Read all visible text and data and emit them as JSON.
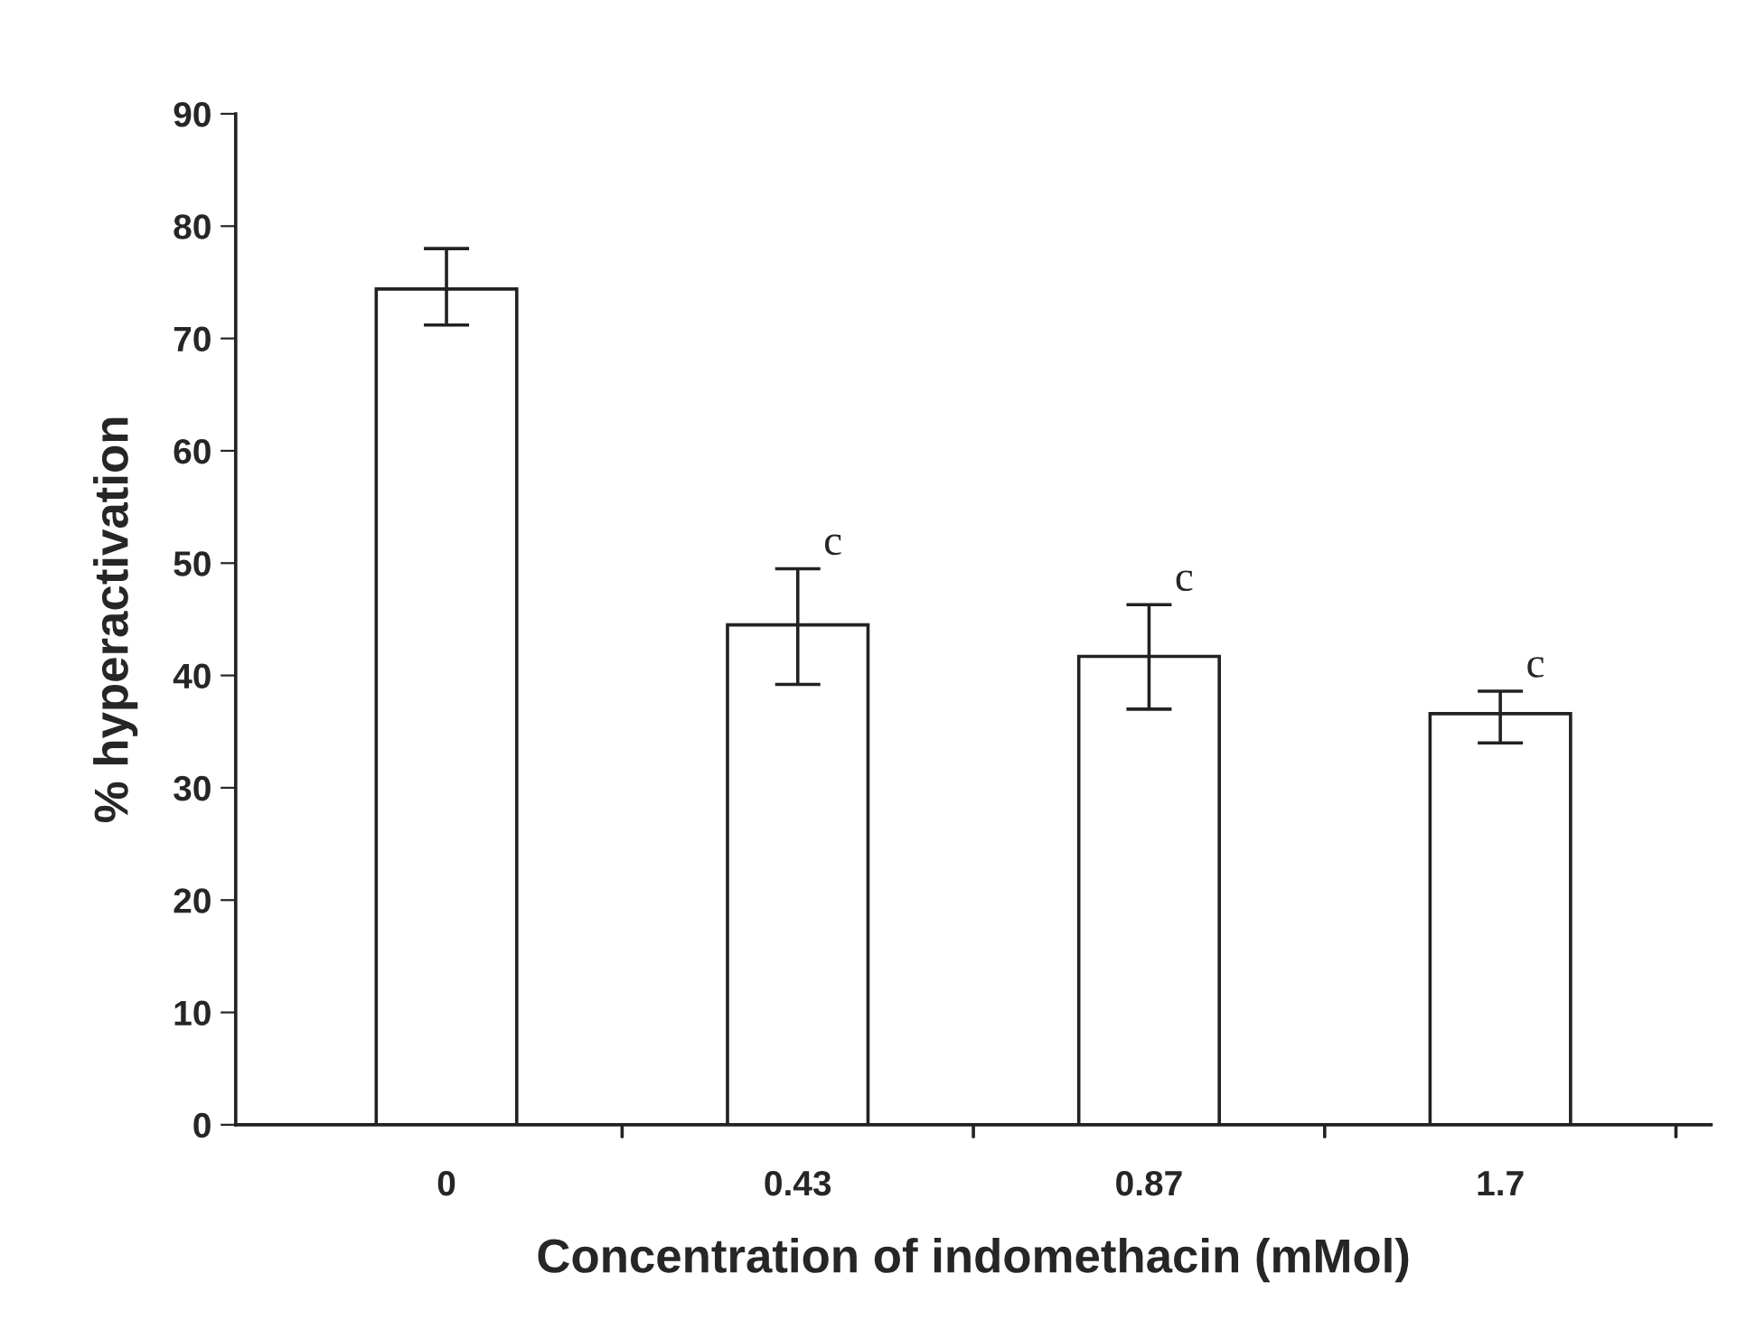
{
  "chart_data": {
    "type": "bar",
    "xlabel": "Concentration of indomethacin (mMol)",
    "ylabel": "% hyperactivation",
    "categories": [
      "0",
      "0.43",
      "0.87",
      "1.7"
    ],
    "values": [
      74.4,
      44.5,
      41.7,
      36.6
    ],
    "errors": [
      [
        71.2,
        78.0
      ],
      [
        39.2,
        49.5
      ],
      [
        37.0,
        46.3
      ],
      [
        34.0,
        38.6
      ]
    ],
    "color": "#ffffff",
    "ylim": [
      0,
      90
    ],
    "yticks": [
      0,
      10,
      20,
      30,
      40,
      50,
      60,
      70,
      80,
      90
    ],
    "grid": false,
    "annotations": [
      {
        "text": "c",
        "x": "0.43",
        "y": 49.5
      },
      {
        "text": "c",
        "x": "0.87",
        "y": 46.3
      },
      {
        "text": "c",
        "x": "1.7",
        "y": 38.6
      }
    ]
  }
}
